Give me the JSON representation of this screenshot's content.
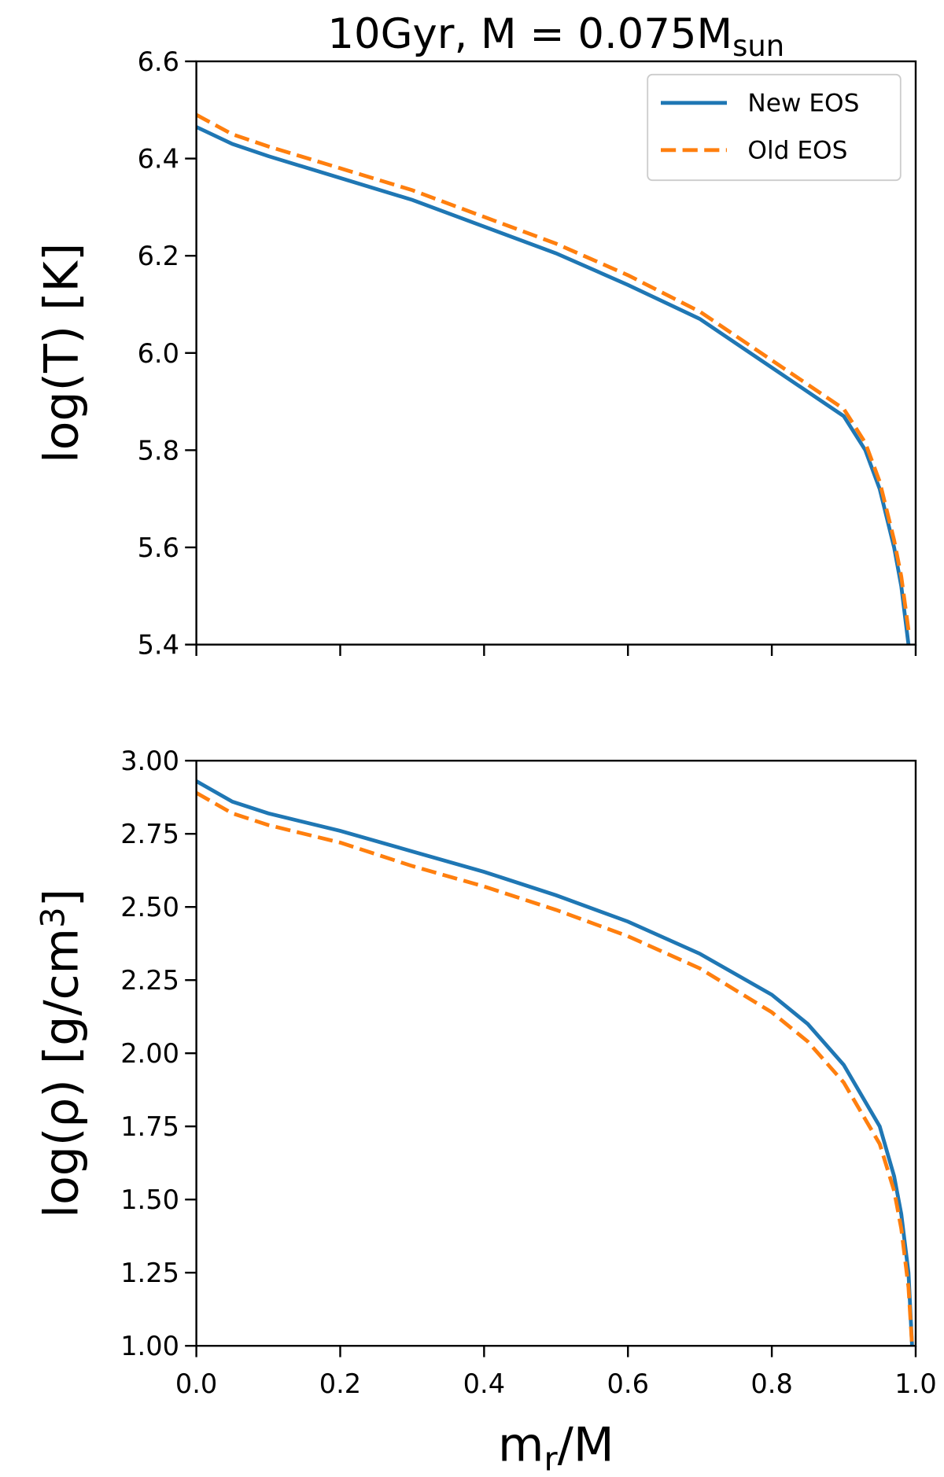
{
  "charts": [
    {
      "type": "line",
      "title": {
        "main": "10Gyr, M = 0.075M",
        "sub": "sun"
      },
      "ylabel": {
        "main": "log(T) [K]"
      },
      "x": [
        0,
        0.05,
        0.1,
        0.2,
        0.3,
        0.4,
        0.5,
        0.6,
        0.7,
        0.8,
        0.9,
        0.93,
        0.95,
        0.97,
        0.98,
        0.99
      ],
      "series": [
        {
          "name": "New EOS",
          "color": "#1f77b4",
          "dash": false,
          "values": [
            6.465,
            6.43,
            6.405,
            6.36,
            6.315,
            6.26,
            6.205,
            6.14,
            6.07,
            5.97,
            5.87,
            5.8,
            5.72,
            5.6,
            5.52,
            5.4
          ]
        },
        {
          "name": "Old EOS",
          "color": "#ff7f0e",
          "dash": true,
          "values": [
            6.49,
            6.45,
            6.425,
            6.38,
            6.335,
            6.28,
            6.225,
            6.16,
            6.085,
            5.985,
            5.885,
            5.815,
            5.735,
            5.615,
            5.54,
            5.43
          ]
        }
      ],
      "xlim": [
        0,
        1
      ],
      "xticks": [
        {
          "value": 0,
          "label": "0.0"
        },
        0.2,
        0.4,
        0.6,
        0.8,
        {
          "value": 1,
          "label": "1.0"
        }
      ],
      "xtick_labels": false,
      "ylim": [
        5.4,
        6.6
      ],
      "yticks": [
        5.4,
        5.6,
        5.8,
        {
          "value": 6,
          "label": "6.0"
        },
        6.2,
        6.4,
        6.6
      ],
      "legend": "upper right"
    },
    {
      "type": "line",
      "ylabel": {
        "main": "log(ρ) [g/cm",
        "sup": "3",
        "rest": "]"
      },
      "xlabel": {
        "main": "m",
        "sub": "r",
        "rest": "/M"
      },
      "x": [
        0,
        0.05,
        0.1,
        0.2,
        0.3,
        0.4,
        0.5,
        0.6,
        0.7,
        0.8,
        0.85,
        0.9,
        0.95,
        0.97,
        0.98,
        0.99,
        0.995
      ],
      "series": [
        {
          "name": "New EOS",
          "color": "#1f77b4",
          "dash": false,
          "values": [
            2.93,
            2.86,
            2.82,
            2.76,
            2.69,
            2.62,
            2.54,
            2.45,
            2.34,
            2.2,
            2.1,
            1.96,
            1.75,
            1.58,
            1.45,
            1.25,
            1.0
          ]
        },
        {
          "name": "Old EOS",
          "color": "#ff7f0e",
          "dash": true,
          "values": [
            2.89,
            2.82,
            2.78,
            2.72,
            2.64,
            2.57,
            2.49,
            2.4,
            2.29,
            2.14,
            2.04,
            1.9,
            1.69,
            1.53,
            1.4,
            1.2,
            1.0
          ]
        }
      ],
      "xlim": [
        0,
        1
      ],
      "xticks": [
        {
          "value": 0,
          "label": "0.0"
        },
        0.2,
        0.4,
        0.6,
        0.8,
        {
          "value": 1,
          "label": "1.0"
        }
      ],
      "xtick_labels": true,
      "ylim": [
        1,
        3
      ],
      "yticks": [
        {
          "value": 1,
          "label": "1.00"
        },
        1.25,
        {
          "value": 1.5,
          "label": "1.50"
        },
        1.75,
        {
          "value": 2,
          "label": "2.00"
        },
        2.25,
        {
          "value": 2.5,
          "label": "2.50"
        },
        2.75,
        {
          "value": 3,
          "label": "3.00"
        }
      ]
    }
  ]
}
